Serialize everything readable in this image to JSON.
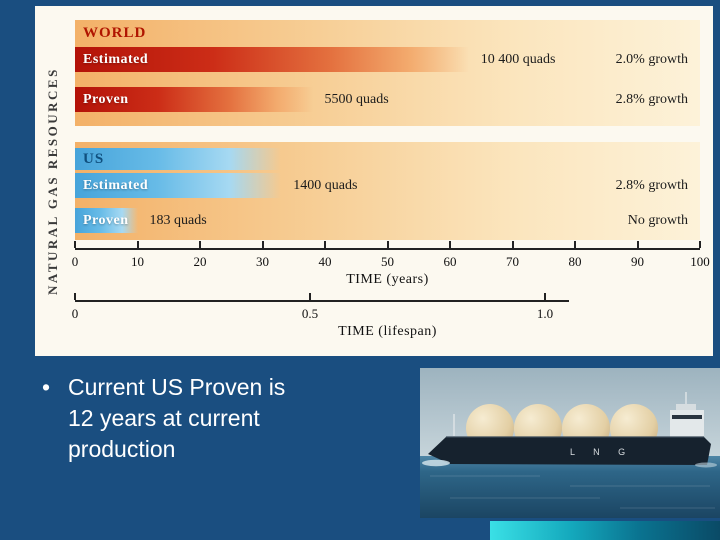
{
  "slide": {
    "background_color": "#1a4e80",
    "bullet": {
      "marker": "•",
      "lines": [
        "Current US Proven is",
        "12 years at current",
        "production"
      ]
    },
    "accent_bar_colors": [
      "#3ae0e6",
      "#0a4a66"
    ]
  },
  "chart_data": {
    "type": "bar",
    "orientation": "horizontal",
    "title": "NATURAL GAS RESOURCES",
    "groups": [
      {
        "name": "WORLD",
        "name_color": "#b01500",
        "bar_color": "#c2250f",
        "bars": [
          {
            "label": "Estimated",
            "years": 63,
            "value_label": "10 400 quads",
            "growth_label": "2.0% growth"
          },
          {
            "label": "Proven",
            "years": 38,
            "value_label": "5500 quads",
            "growth_label": "2.8% growth"
          }
        ]
      },
      {
        "name": "US",
        "name_color": "#0f4f7e",
        "bar_color": "#55b1e2",
        "bars": [
          {
            "label": "Estimated",
            "years": 33,
            "value_label": "1400 quads",
            "growth_label": "2.8% growth"
          },
          {
            "label": "Proven",
            "years": 10,
            "value_label": "183 quads",
            "growth_label": "No growth"
          }
        ]
      }
    ],
    "x_axis": {
      "label": "TIME (years)",
      "min": 0,
      "max": 100,
      "ticks": [
        0,
        10,
        20,
        30,
        40,
        50,
        60,
        70,
        80,
        90,
        100
      ]
    },
    "lifespan_axis": {
      "label": "TIME (lifespan)",
      "ticks": [
        {
          "label": "0",
          "years": 0
        },
        {
          "label": "0.5",
          "years": 37.6
        },
        {
          "label": "1.0",
          "years": 75.2
        }
      ]
    }
  },
  "photo": {
    "description": "LNG tanker ship at sea",
    "hull_text": "L N G"
  }
}
